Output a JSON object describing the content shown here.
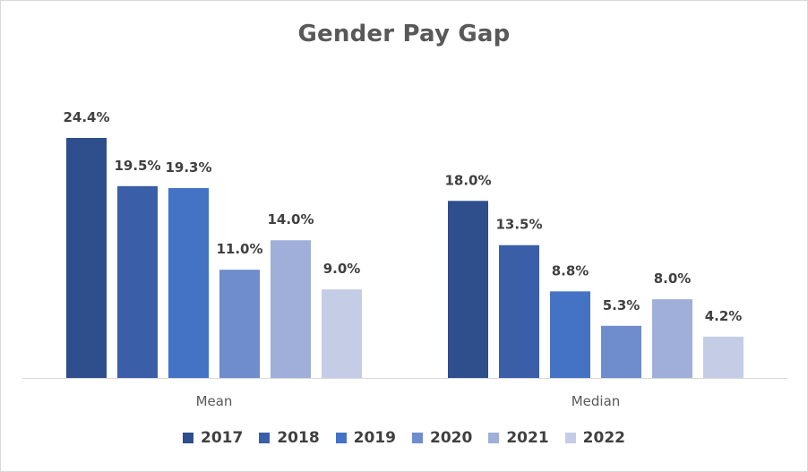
{
  "chart_data": {
    "type": "bar",
    "title": "Gender Pay Gap",
    "categories": [
      "Mean",
      "Median"
    ],
    "series": [
      {
        "name": "2017",
        "color": "#2e4e8c",
        "values": [
          24.4,
          18.0
        ],
        "labels": [
          "24.4%",
          "18.0%"
        ]
      },
      {
        "name": "2018",
        "color": "#3a5ea8",
        "values": [
          19.5,
          13.5
        ],
        "labels": [
          "19.5%",
          "13.5%"
        ]
      },
      {
        "name": "2019",
        "color": "#4472c4",
        "values": [
          19.3,
          8.8
        ],
        "labels": [
          "19.3%",
          "8.8%"
        ]
      },
      {
        "name": "2020",
        "color": "#6f8ccc",
        "values": [
          11.0,
          5.3
        ],
        "labels": [
          "11.0%",
          "5.3%"
        ]
      },
      {
        "name": "2021",
        "color": "#a0afd9",
        "values": [
          14.0,
          8.0
        ],
        "labels": [
          "14.0%",
          "8.0%"
        ]
      },
      {
        "name": "2022",
        "color": "#c5cde6",
        "values": [
          9.0,
          4.2
        ],
        "labels": [
          "9.0%",
          "4.2%"
        ]
      }
    ],
    "xlabel": "",
    "ylabel": "",
    "ylim": [
      0,
      24.4
    ],
    "grid": false,
    "legend_position": "bottom"
  }
}
